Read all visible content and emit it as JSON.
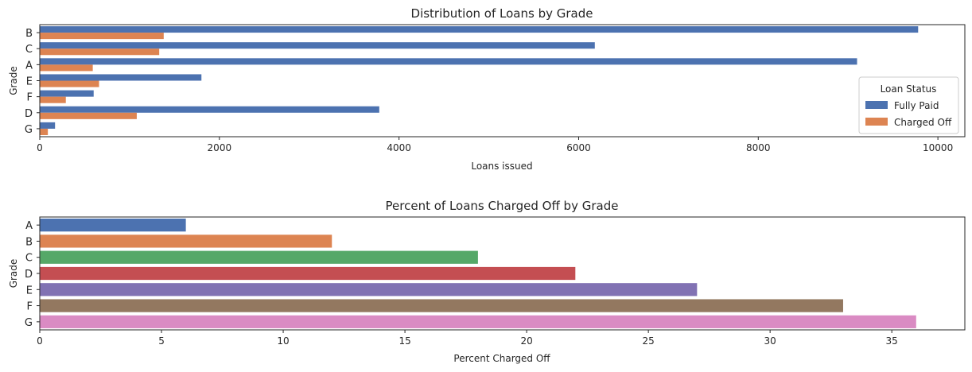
{
  "chart_data": [
    {
      "type": "bar",
      "orientation": "horizontal",
      "title": "Distribution of Loans by Grade",
      "xlabel": "Loans issued",
      "ylabel": "Grade",
      "xlim": [
        0,
        10300
      ],
      "xticks": [
        0,
        2000,
        4000,
        6000,
        8000,
        10000
      ],
      "categories": [
        "B",
        "C",
        "A",
        "E",
        "F",
        "D",
        "G"
      ],
      "series": [
        {
          "name": "Fully Paid",
          "color": "#4c72b0",
          "values": [
            9780,
            6180,
            9100,
            1800,
            600,
            3780,
            170
          ]
        },
        {
          "name": "Charged Off",
          "color": "#dd8452",
          "values": [
            1380,
            1330,
            590,
            660,
            290,
            1080,
            90
          ]
        }
      ],
      "legend": {
        "title": "Loan Status",
        "placement": "lower-right"
      },
      "grid": false
    },
    {
      "type": "bar",
      "orientation": "horizontal",
      "title": "Percent of Loans Charged Off by Grade",
      "xlabel": "Percent Charged Off",
      "ylabel": "Grade",
      "xlim": [
        0,
        38
      ],
      "xticks": [
        0,
        5,
        10,
        15,
        20,
        25,
        30,
        35
      ],
      "categories": [
        "A",
        "B",
        "C",
        "D",
        "E",
        "F",
        "G"
      ],
      "values": [
        6,
        12,
        18,
        22,
        27,
        33,
        36
      ],
      "colors": [
        "#4c72b0",
        "#dd8452",
        "#55a868",
        "#c44e52",
        "#8172b3",
        "#937860",
        "#da8bc3"
      ],
      "grid": false
    }
  ]
}
